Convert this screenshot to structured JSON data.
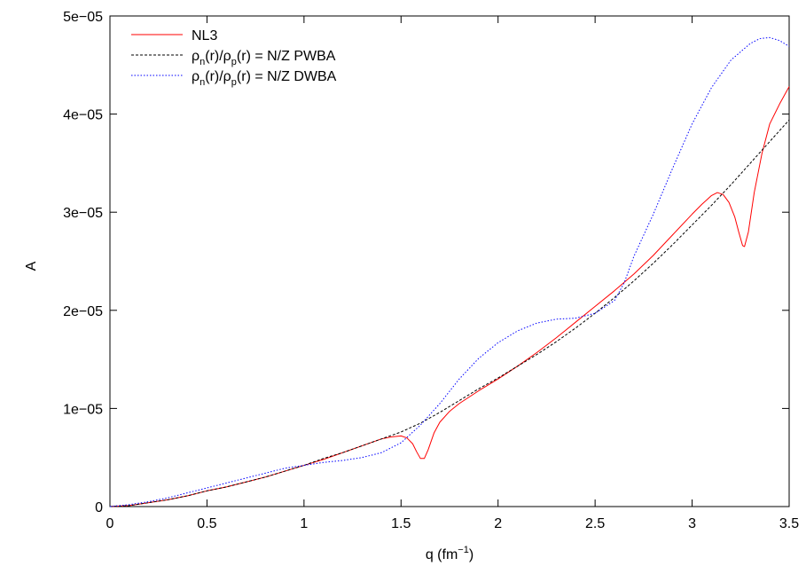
{
  "chart_data": {
    "type": "line",
    "xlabel": "q (fm",
    "xlabel_sup": "−1",
    "xlabel_close": ")",
    "ylabel": "A",
    "xlim": [
      0,
      3.5
    ],
    "ylim": [
      0,
      5e-05
    ],
    "grid": false,
    "legend_position": "top-left",
    "x_ticks": [
      0,
      0.5,
      1,
      1.5,
      2,
      2.5,
      3,
      3.5
    ],
    "x_tick_labels": [
      "0",
      "0.5",
      "1",
      "1.5",
      "2",
      "2.5",
      "3",
      "3.5"
    ],
    "y_ticks": [
      0,
      1e-05,
      2e-05,
      3e-05,
      4e-05,
      5e-05
    ],
    "y_tick_labels": [
      "0",
      "1e−05",
      "2e−05",
      "3e−05",
      "4e−05",
      "5e−05"
    ],
    "legend": [
      {
        "label": "NL3"
      },
      {
        "rho": "ρ",
        "sub_n": "n",
        "mid": "(r)/",
        "rho2": "ρ",
        "sub_p": "p",
        "tail": "(r) = N/Z PWBA"
      },
      {
        "rho": "ρ",
        "sub_n": "n",
        "mid": "(r)/",
        "rho2": "ρ",
        "sub_p": "p",
        "tail": "(r) = N/Z DWBA"
      }
    ],
    "series": [
      {
        "color": "#ff0000",
        "style": "solid",
        "x": [
          0,
          0.1,
          0.2,
          0.3,
          0.4,
          0.5,
          0.6,
          0.7,
          0.8,
          0.9,
          1.0,
          1.1,
          1.2,
          1.3,
          1.4,
          1.45,
          1.5,
          1.53,
          1.56,
          1.58,
          1.6,
          1.62,
          1.64,
          1.67,
          1.7,
          1.75,
          1.8,
          1.9,
          2.0,
          2.1,
          2.2,
          2.3,
          2.4,
          2.5,
          2.6,
          2.7,
          2.8,
          2.9,
          3.0,
          3.05,
          3.1,
          3.13,
          3.16,
          3.19,
          3.22,
          3.24,
          3.26,
          3.27,
          3.29,
          3.32,
          3.36,
          3.4,
          3.45,
          3.5
        ],
        "values": [
          0,
          1e-07,
          4e-07,
          7e-07,
          1.1e-06,
          1.6e-06,
          2e-06,
          2.5e-06,
          3e-06,
          3.6e-06,
          4.2e-06,
          4.8e-06,
          5.5e-06,
          6.2e-06,
          6.9e-06,
          7.1e-06,
          7.2e-06,
          7e-06,
          6.4e-06,
          5.6e-06,
          4.9e-06,
          4.9e-06,
          5.8e-06,
          7.5e-06,
          8.6e-06,
          9.7e-06,
          1.05e-05,
          1.18e-05,
          1.3e-05,
          1.43e-05,
          1.57e-05,
          1.72e-05,
          1.88e-05,
          2.04e-05,
          2.2e-05,
          2.37e-05,
          2.56e-05,
          2.77e-05,
          2.98e-05,
          3.08e-05,
          3.17e-05,
          3.2e-05,
          3.18e-05,
          3.1e-05,
          2.95e-05,
          2.8e-05,
          2.66e-05,
          2.65e-05,
          2.8e-05,
          3.2e-05,
          3.6e-05,
          3.9e-05,
          4.1e-05,
          4.28e-05
        ]
      },
      {
        "color": "#000000",
        "style": "dashed",
        "x": [
          0,
          0.1,
          0.2,
          0.3,
          0.4,
          0.5,
          0.6,
          0.7,
          0.8,
          0.9,
          1.0,
          1.1,
          1.2,
          1.3,
          1.4,
          1.5,
          1.6,
          1.7,
          1.8,
          1.9,
          2.0,
          2.1,
          2.2,
          2.3,
          2.4,
          2.5,
          2.6,
          2.7,
          2.8,
          2.9,
          3.0,
          3.1,
          3.2,
          3.3,
          3.4,
          3.5
        ],
        "values": [
          0,
          1e-07,
          4e-07,
          7e-07,
          1.1e-06,
          1.6e-06,
          2e-06,
          2.5e-06,
          3e-06,
          3.6e-06,
          4.2e-06,
          4.9e-06,
          5.5e-06,
          6.2e-06,
          6.9e-06,
          7.6e-06,
          8.5e-06,
          9.6e-06,
          1.08e-05,
          1.2e-05,
          1.31e-05,
          1.43e-05,
          1.55e-05,
          1.68e-05,
          1.82e-05,
          1.97e-05,
          2.13e-05,
          2.3e-05,
          2.48e-05,
          2.67e-05,
          2.87e-05,
          3.07e-05,
          3.28e-05,
          3.5e-05,
          3.72e-05,
          3.94e-05
        ]
      },
      {
        "color": "#0000ff",
        "style": "dotted",
        "x": [
          0,
          0.1,
          0.2,
          0.3,
          0.4,
          0.5,
          0.6,
          0.7,
          0.8,
          0.9,
          1.0,
          1.1,
          1.2,
          1.3,
          1.4,
          1.5,
          1.6,
          1.7,
          1.8,
          1.9,
          2.0,
          2.1,
          2.2,
          2.3,
          2.4,
          2.5,
          2.6,
          2.65,
          2.7,
          2.8,
          2.9,
          3.0,
          3.1,
          3.2,
          3.3,
          3.35,
          3.4,
          3.45,
          3.5
        ],
        "values": [
          0,
          2e-07,
          5e-07,
          9e-07,
          1.4e-06,
          1.9e-06,
          2.4e-06,
          2.9e-06,
          3.4e-06,
          3.9e-06,
          4.2e-06,
          4.5e-06,
          4.7e-06,
          5e-06,
          5.5e-06,
          6.5e-06,
          8.3e-06,
          1.05e-05,
          1.3e-05,
          1.51e-05,
          1.67e-05,
          1.79e-05,
          1.87e-05,
          1.91e-05,
          1.92e-05,
          1.97e-05,
          2.1e-05,
          2.28e-05,
          2.55e-05,
          2.98e-05,
          3.45e-05,
          3.9e-05,
          4.27e-05,
          4.55e-05,
          4.72e-05,
          4.77e-05,
          4.78e-05,
          4.75e-05,
          4.69e-05
        ]
      }
    ]
  }
}
